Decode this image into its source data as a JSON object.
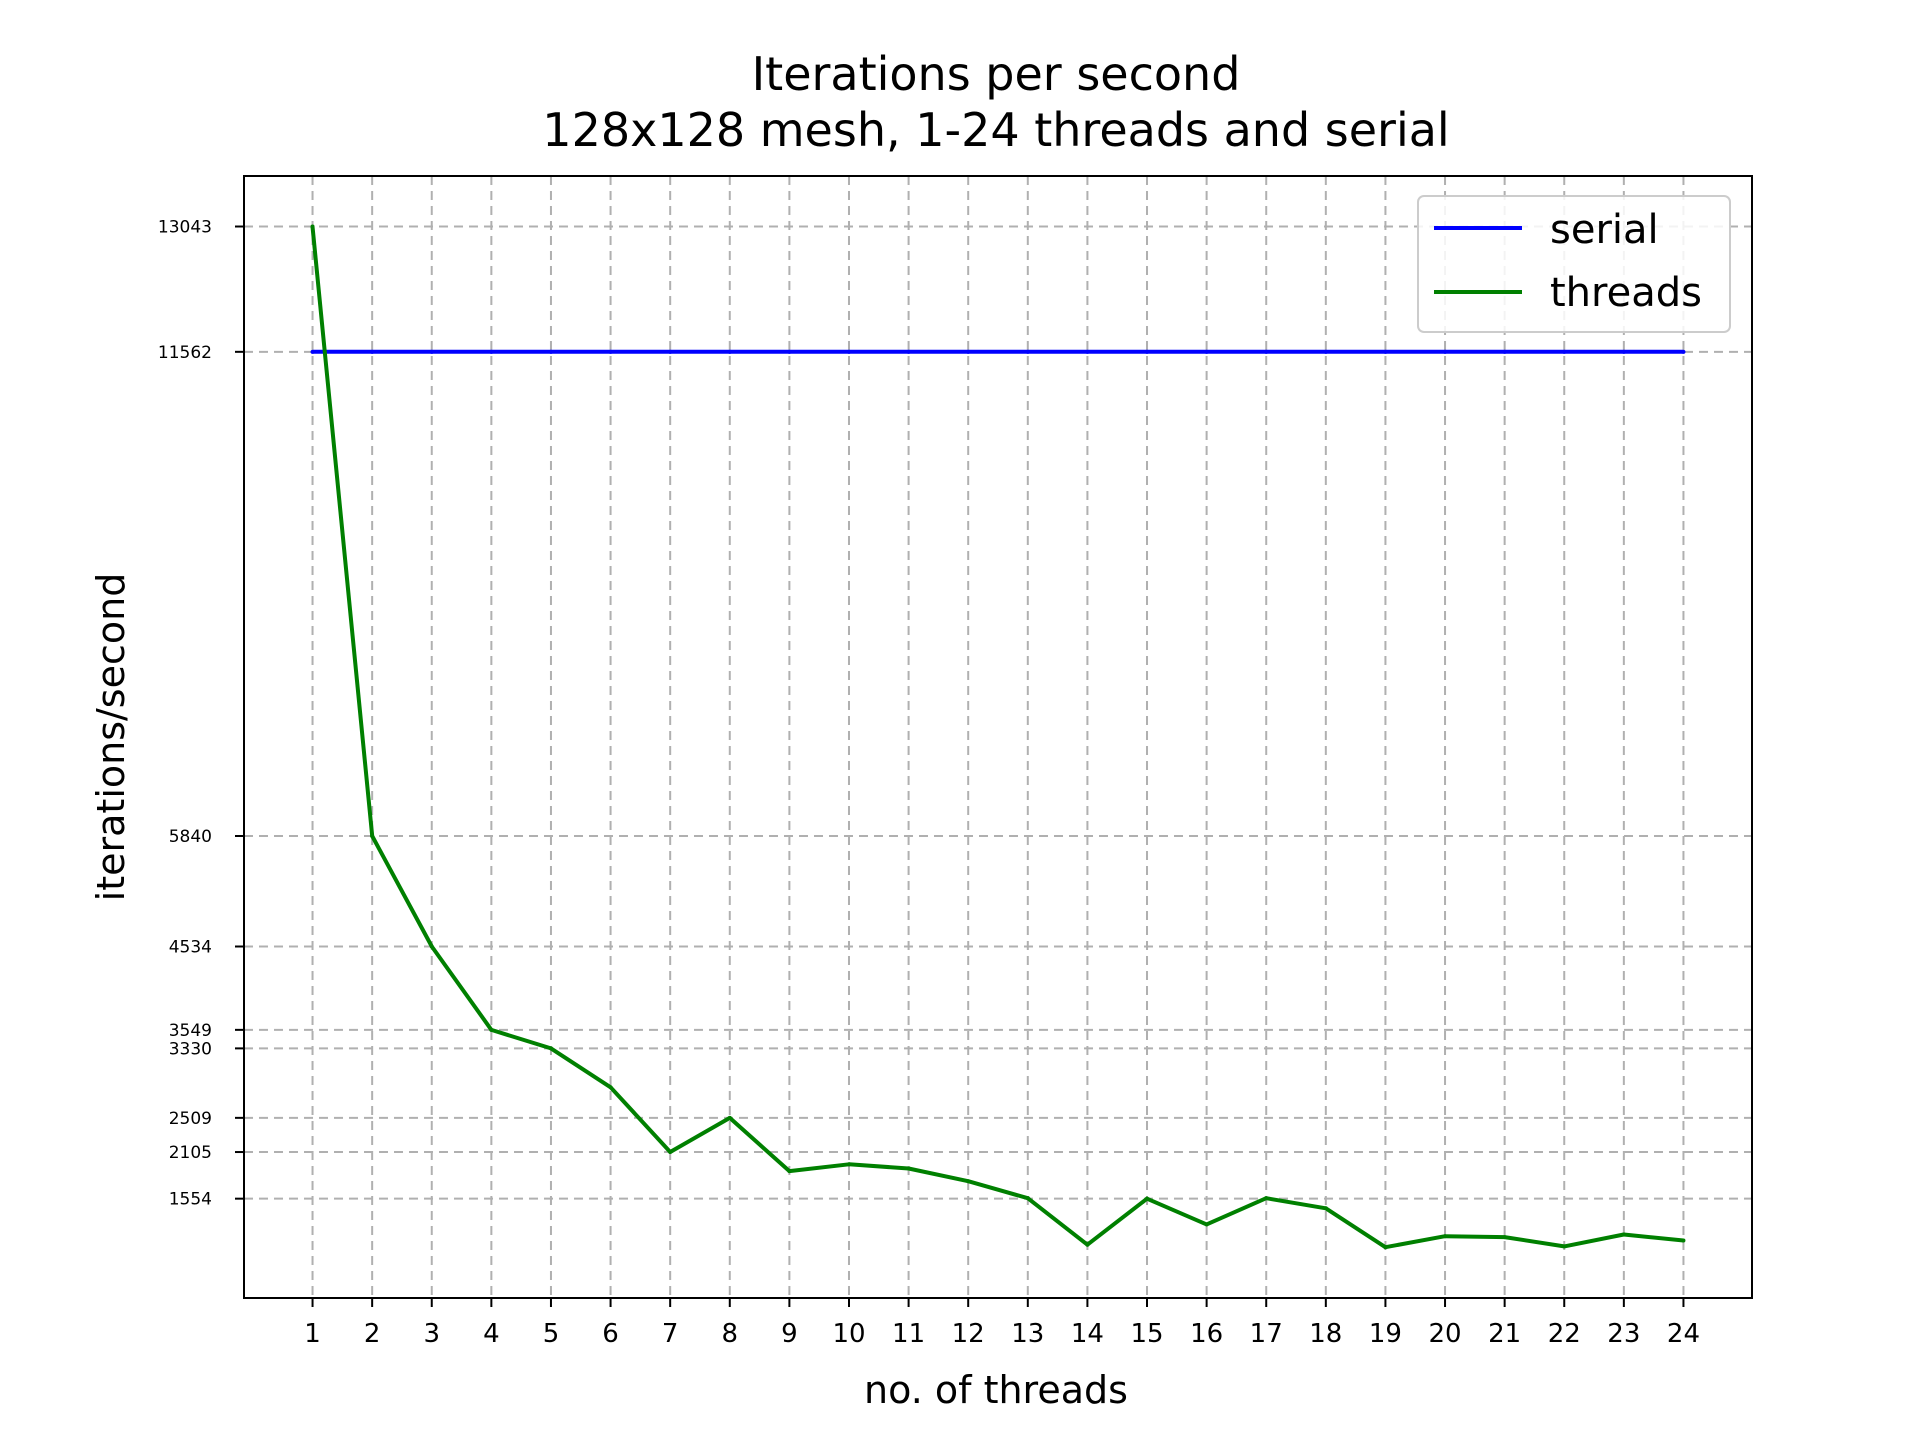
{
  "chart_data": {
    "type": "line",
    "title": "Iterations per second",
    "subtitle": "128x128 mesh, 1-24 threads and serial",
    "xlabel": "no. of threads",
    "ylabel": "iterations/second",
    "x": [
      1,
      2,
      3,
      4,
      5,
      6,
      7,
      8,
      9,
      10,
      11,
      12,
      13,
      14,
      15,
      16,
      17,
      18,
      19,
      20,
      21,
      22,
      23,
      24
    ],
    "x_tick_labels": [
      "1",
      "2",
      "3",
      "4",
      "5",
      "6",
      "7",
      "8",
      "9",
      "10",
      "11",
      "12",
      "13",
      "14",
      "15",
      "16",
      "17",
      "18",
      "19",
      "20",
      "21",
      "22",
      "23",
      "24"
    ],
    "y_ticks": [
      13043,
      11562,
      5840,
      4534,
      3549,
      3330,
      2509,
      2105,
      1554
    ],
    "y_tick_labels": [
      "13043",
      "11562",
      "5840",
      "4534",
      "3549",
      "3330",
      "2509",
      "2105",
      "1554"
    ],
    "xlim": [
      -0.15,
      25.15
    ],
    "ylim": [
      380,
      13640
    ],
    "grid": true,
    "legend_position": "top-right",
    "series": [
      {
        "name": "serial",
        "color": "#0000ff",
        "values": [
          11562,
          11562,
          11562,
          11562,
          11562,
          11562,
          11562,
          11562,
          11562,
          11562,
          11562,
          11562,
          11562,
          11562,
          11562,
          11562,
          11562,
          11562,
          11562,
          11562,
          11562,
          11562,
          11562,
          11562
        ]
      },
      {
        "name": "threads",
        "color": "#008000",
        "values": [
          13043,
          5840,
          4534,
          3549,
          3330,
          2870,
          2105,
          2509,
          1880,
          1960,
          1910,
          1760,
          1560,
          1010,
          1554,
          1250,
          1560,
          1440,
          980,
          1110,
          1100,
          990,
          1130,
          1060
        ]
      }
    ]
  }
}
